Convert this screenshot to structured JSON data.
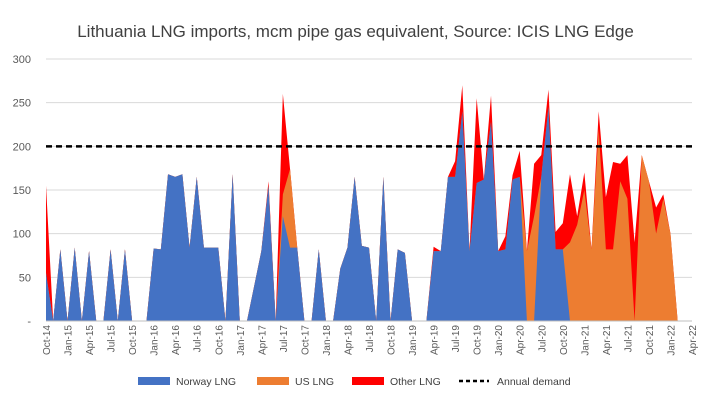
{
  "chart_data": {
    "type": "area",
    "title": "Lithuania LNG imports, mcm pipe gas equivalent, Source: ICIS LNG Edge",
    "xlabel": "",
    "ylabel": "",
    "ylim": [
      0,
      300
    ],
    "y_ticks": [
      {
        "value": 300,
        "label": "300"
      },
      {
        "value": 250,
        "label": "250"
      },
      {
        "value": 200,
        "label": "200"
      },
      {
        "value": 150,
        "label": "150"
      },
      {
        "value": 100,
        "label": "100"
      },
      {
        "value": 50,
        "label": "50"
      },
      {
        "value": 0,
        "label": "-"
      }
    ],
    "categories": [
      "Oct-14",
      "Nov-14",
      "Dec-14",
      "Jan-15",
      "Feb-15",
      "Mar-15",
      "Apr-15",
      "May-15",
      "Jun-15",
      "Jul-15",
      "Aug-15",
      "Sep-15",
      "Oct-15",
      "Nov-15",
      "Dec-15",
      "Jan-16",
      "Feb-16",
      "Mar-16",
      "Apr-16",
      "May-16",
      "Jun-16",
      "Jul-16",
      "Aug-16",
      "Sep-16",
      "Oct-16",
      "Nov-16",
      "Dec-16",
      "Jan-17",
      "Feb-17",
      "Mar-17",
      "Apr-17",
      "May-17",
      "Jun-17",
      "Jul-17",
      "Aug-17",
      "Sep-17",
      "Oct-17",
      "Nov-17",
      "Dec-17",
      "Jan-18",
      "Feb-18",
      "Mar-18",
      "Apr-18",
      "May-18",
      "Jun-18",
      "Jul-18",
      "Aug-18",
      "Sep-18",
      "Oct-18",
      "Nov-18",
      "Dec-18",
      "Jan-19",
      "Feb-19",
      "Mar-19",
      "Apr-19",
      "May-19",
      "Jun-19",
      "Jul-19",
      "Aug-19",
      "Sep-19",
      "Oct-19",
      "Nov-19",
      "Dec-19",
      "Jan-20",
      "Feb-20",
      "Mar-20",
      "Apr-20",
      "May-20",
      "Jun-20",
      "Jul-20",
      "Aug-20",
      "Sep-20",
      "Oct-20",
      "Nov-20",
      "Dec-20",
      "Jan-21",
      "Feb-21",
      "Mar-21",
      "Apr-21",
      "May-21",
      "Jun-21",
      "Jul-21",
      "Aug-21",
      "Sep-21",
      "Oct-21",
      "Nov-21",
      "Dec-21",
      "Jan-22",
      "Feb-22",
      "Mar-22",
      "Apr-22"
    ],
    "tick_labels": [
      "Oct-14",
      "Jan-15",
      "Apr-15",
      "Jul-15",
      "Oct-15",
      "Jan-16",
      "Apr-16",
      "Jul-16",
      "Oct-16",
      "Jan-17",
      "Apr-17",
      "Jul-17",
      "Oct-17",
      "Jan-18",
      "Apr-18",
      "Jul-18",
      "Oct-18",
      "Jan-19",
      "Apr-19",
      "Jul-19",
      "Oct-19",
      "Jan-20",
      "Apr-20",
      "Jul-20",
      "Oct-20",
      "Jan-21",
      "Apr-21",
      "Jul-21",
      "Oct-21",
      "Jan-22",
      "Apr-22"
    ],
    "series": [
      {
        "name": "Norway LNG",
        "color": "#4472C4",
        "values": [
          55,
          0,
          82,
          0,
          84,
          0,
          80,
          0,
          0,
          82,
          0,
          82,
          0,
          0,
          0,
          83,
          82,
          168,
          165,
          168,
          84,
          165,
          84,
          84,
          84,
          0,
          168,
          0,
          0,
          40,
          80,
          155,
          0,
          120,
          84,
          84,
          0,
          0,
          82,
          0,
          0,
          60,
          84,
          165,
          86,
          84,
          0,
          165,
          0,
          82,
          78,
          0,
          0,
          0,
          80,
          80,
          165,
          165,
          240,
          80,
          158,
          162,
          228,
          80,
          82,
          162,
          165,
          0,
          0,
          165,
          245,
          82,
          82,
          0,
          0,
          0,
          0,
          0,
          0,
          0,
          0,
          0,
          0,
          0,
          0,
          0,
          0,
          0,
          0,
          0,
          0
        ]
      },
      {
        "name": "US LNG",
        "color": "#ED7D31",
        "values": [
          0,
          0,
          0,
          0,
          0,
          0,
          0,
          0,
          0,
          0,
          0,
          0,
          0,
          0,
          0,
          0,
          0,
          0,
          0,
          0,
          0,
          0,
          0,
          0,
          0,
          0,
          0,
          0,
          0,
          0,
          0,
          0,
          0,
          25,
          90,
          0,
          0,
          0,
          0,
          0,
          0,
          0,
          0,
          0,
          0,
          0,
          0,
          0,
          0,
          0,
          0,
          0,
          0,
          0,
          0,
          0,
          0,
          0,
          0,
          0,
          0,
          0,
          0,
          0,
          0,
          0,
          0,
          80,
          120,
          0,
          0,
          0,
          0,
          90,
          110,
          150,
          82,
          220,
          82,
          82,
          160,
          140,
          0,
          190,
          160,
          100,
          140,
          100,
          0,
          0,
          0
        ]
      },
      {
        "name": "Other LNG",
        "color": "#FF0000",
        "values": [
          100,
          0,
          0,
          0,
          0,
          0,
          0,
          0,
          0,
          0,
          0,
          0,
          0,
          0,
          0,
          0,
          0,
          0,
          0,
          0,
          0,
          0,
          0,
          0,
          0,
          0,
          0,
          0,
          0,
          0,
          0,
          5,
          0,
          115,
          0,
          0,
          0,
          0,
          0,
          0,
          0,
          0,
          0,
          0,
          0,
          0,
          0,
          0,
          0,
          0,
          0,
          0,
          0,
          0,
          5,
          0,
          0,
          18,
          30,
          0,
          97,
          0,
          30,
          0,
          15,
          5,
          30,
          0,
          60,
          25,
          20,
          20,
          30,
          78,
          10,
          20,
          0,
          20,
          60,
          100,
          20,
          50,
          90,
          0,
          0,
          30,
          5,
          0,
          0,
          0,
          0
        ]
      }
    ],
    "reference_line": {
      "name": "Annual demand",
      "value": 200,
      "style": "dashed",
      "color": "#000000"
    },
    "legend_position": "bottom",
    "grid": true
  }
}
